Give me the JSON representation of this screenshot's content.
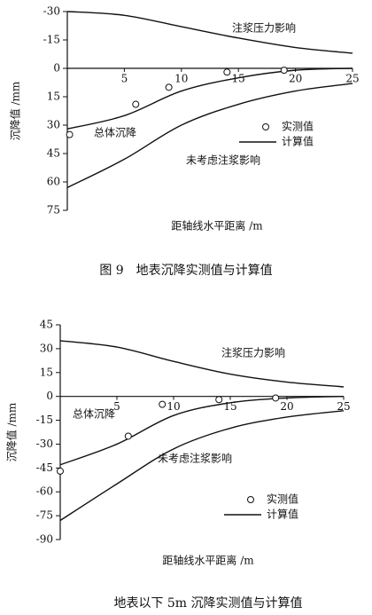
{
  "chart_data": [
    {
      "type": "line",
      "y_label": "沉降值 /mm",
      "x_label": "距轴线水平距离 /m",
      "caption": "图 9　地表沉降实测值与计算值",
      "y_inverted": true,
      "xlim": [
        0,
        25
      ],
      "xticks": [
        5,
        10,
        15,
        20,
        25
      ],
      "ylim": [
        -30,
        75
      ],
      "yticks": [
        -30,
        -15,
        0,
        15,
        30,
        45,
        60,
        75
      ],
      "legend_line_label": "计算值",
      "series": [
        {
          "name": "注浆压力影响",
          "kind": "line",
          "color": "#111",
          "x": [
            0,
            5,
            10,
            15,
            20,
            25
          ],
          "values": [
            -30,
            -28,
            -22,
            -16,
            -11,
            -8
          ]
        },
        {
          "name": "总体沉降",
          "kind": "line",
          "color": "#111",
          "x": [
            0,
            5,
            10,
            15,
            20,
            25
          ],
          "values": [
            32,
            25,
            12,
            5,
            1,
            0
          ]
        },
        {
          "name": "未考虑注浆影响",
          "kind": "line",
          "color": "#111",
          "x": [
            0,
            5,
            10,
            15,
            20,
            25
          ],
          "values": [
            63,
            48,
            30,
            19,
            12,
            8
          ]
        },
        {
          "name": "实测值",
          "kind": "scatter",
          "color": "#111",
          "x": [
            0.2,
            6,
            8.9,
            14,
            19
          ],
          "values": [
            35,
            19,
            10,
            2,
            1
          ]
        }
      ]
    },
    {
      "type": "line",
      "y_label": "沉降值 /mm",
      "x_label": "距轴线水平距离 /m",
      "caption": "地表以下 5m 沉降实测值与计算值",
      "y_inverted": false,
      "xlim": [
        0,
        25
      ],
      "xticks": [
        5,
        10,
        15,
        20,
        25
      ],
      "ylim": [
        -90,
        45
      ],
      "yticks": [
        45,
        30,
        15,
        0,
        -15,
        -30,
        -45,
        -60,
        -75,
        -90
      ],
      "legend_line_label": "计算值",
      "series": [
        {
          "name": "注浆压力影响",
          "kind": "line",
          "color": "#111",
          "x": [
            0,
            5,
            10,
            15,
            20,
            25
          ],
          "values": [
            35,
            31,
            22,
            14,
            9,
            6
          ]
        },
        {
          "name": "总体沉降",
          "kind": "line",
          "color": "#111",
          "x": [
            0,
            5,
            10,
            15,
            20,
            25
          ],
          "values": [
            -43,
            -30,
            -12,
            -4,
            -1,
            0
          ]
        },
        {
          "name": "未考虑注浆影响",
          "kind": "line",
          "color": "#111",
          "x": [
            0,
            5,
            10,
            15,
            20,
            25
          ],
          "values": [
            -78,
            -55,
            -33,
            -20,
            -13,
            -9
          ]
        },
        {
          "name": "实测值",
          "kind": "scatter",
          "color": "#111",
          "x": [
            0,
            6,
            9,
            14,
            19
          ],
          "values": [
            -47,
            -25,
            -5,
            -2,
            -1
          ]
        }
      ]
    }
  ]
}
